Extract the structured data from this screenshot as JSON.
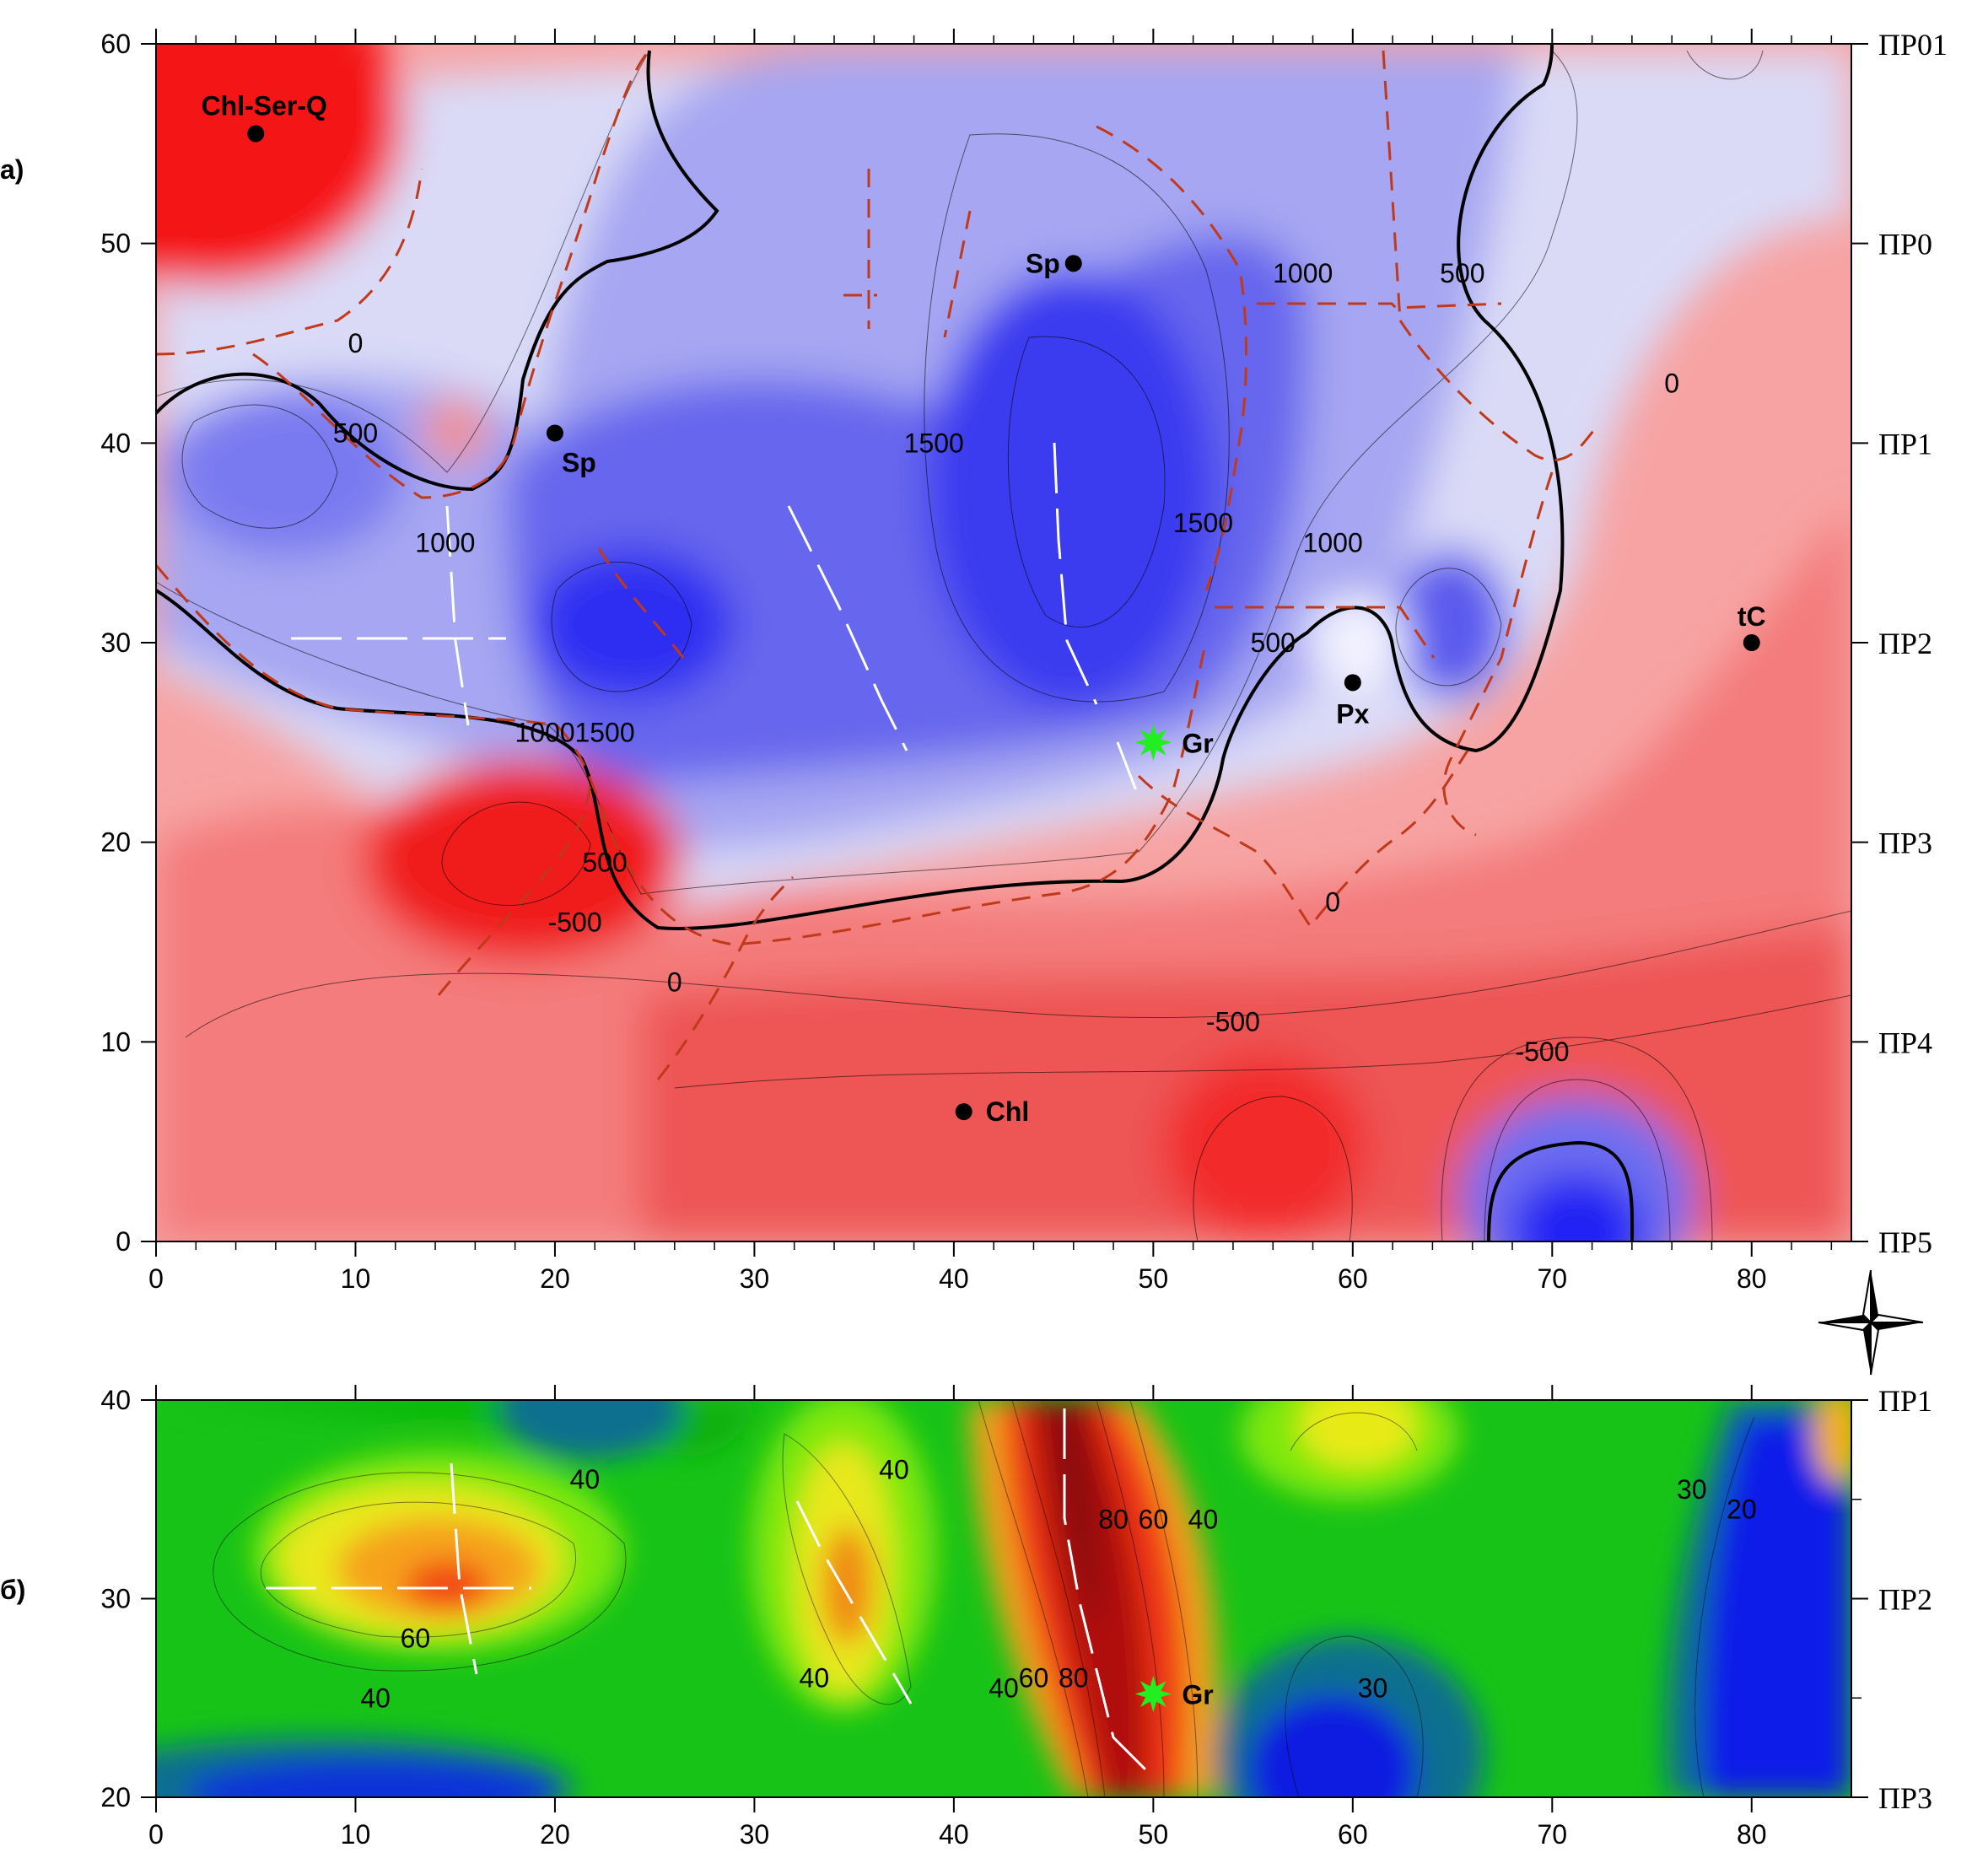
{
  "chart_data": [
    {
      "type": "heatmap",
      "panel_label": "a)",
      "xlim": [
        0,
        85
      ],
      "ylim": [
        0,
        60
      ],
      "x_ticks": [
        0,
        10,
        20,
        30,
        40,
        50,
        60,
        70,
        80
      ],
      "y_ticks": [
        0,
        10,
        20,
        30,
        40,
        50,
        60
      ],
      "right_labels": [
        {
          "y": 60,
          "label": "ПР01"
        },
        {
          "y": 50,
          "label": "ПР0"
        },
        {
          "y": 40,
          "label": "ПР1"
        },
        {
          "y": 30,
          "label": "ПР2"
        },
        {
          "y": 20,
          "label": "ПР3"
        },
        {
          "y": 10,
          "label": "ПР4"
        },
        {
          "y": 0,
          "label": "ПР5"
        }
      ],
      "colormap": "red-white-blue",
      "contour_labels": [
        {
          "x": 10,
          "y": 45,
          "text": "0"
        },
        {
          "x": 10,
          "y": 40.5,
          "text": "500"
        },
        {
          "x": 14.5,
          "y": 35,
          "text": "1000"
        },
        {
          "x": 39,
          "y": 40,
          "text": "1500"
        },
        {
          "x": 57.5,
          "y": 48.5,
          "text": "1000"
        },
        {
          "x": 65.5,
          "y": 48.5,
          "text": "500"
        },
        {
          "x": 76,
          "y": 43,
          "text": "0"
        },
        {
          "x": 52.5,
          "y": 36,
          "text": "1500"
        },
        {
          "x": 59,
          "y": 35,
          "text": "1000"
        },
        {
          "x": 56,
          "y": 30,
          "text": "500"
        },
        {
          "x": 19.5,
          "y": 25.5,
          "text": "1000"
        },
        {
          "x": 22.5,
          "y": 25.5,
          "text": "1500"
        },
        {
          "x": 22.5,
          "y": 19,
          "text": "500"
        },
        {
          "x": 21,
          "y": 16,
          "text": "-500"
        },
        {
          "x": 26,
          "y": 13,
          "text": "0"
        },
        {
          "x": 59,
          "y": 17,
          "text": "0"
        },
        {
          "x": 54,
          "y": 11,
          "text": "-500"
        },
        {
          "x": 69.5,
          "y": 9.5,
          "text": "-500"
        }
      ],
      "points": [
        {
          "x": 5,
          "y": 55.5,
          "label": "Chl-Ser-Q"
        },
        {
          "x": 20,
          "y": 40.5,
          "label": "Sp"
        },
        {
          "x": 46,
          "y": 49,
          "label": "Sp"
        },
        {
          "x": 60,
          "y": 28,
          "label": "Px"
        },
        {
          "x": 80,
          "y": 30,
          "label": "tC"
        },
        {
          "x": 40.5,
          "y": 6.5,
          "label": "Chl"
        }
      ],
      "star_point": {
        "x": 50,
        "y": 25,
        "label": "Gr",
        "color": "#22ee22"
      },
      "colors": {
        "fault_lines": "#c0391b",
        "zero_contour": "#000000"
      }
    },
    {
      "type": "heatmap",
      "panel_label": "б)",
      "xlim": [
        0,
        85
      ],
      "ylim": [
        20,
        40
      ],
      "x_ticks": [
        0,
        10,
        20,
        30,
        40,
        50,
        60,
        70,
        80
      ],
      "y_ticks": [
        20,
        30,
        40
      ],
      "right_labels": [
        {
          "y": 40,
          "label": "ПР1"
        },
        {
          "y": 30,
          "label": "ПР2"
        },
        {
          "y": 20,
          "label": "ПР3"
        }
      ],
      "colormap": "rainbow",
      "contour_labels": [
        {
          "x": 21.5,
          "y": 36,
          "text": "40"
        },
        {
          "x": 13,
          "y": 28,
          "text": "60"
        },
        {
          "x": 11,
          "y": 25,
          "text": "40"
        },
        {
          "x": 37,
          "y": 36.5,
          "text": "40"
        },
        {
          "x": 33,
          "y": 26,
          "text": "40"
        },
        {
          "x": 42.5,
          "y": 25.5,
          "text": "40"
        },
        {
          "x": 44,
          "y": 26,
          "text": "60"
        },
        {
          "x": 46,
          "y": 26,
          "text": "80"
        },
        {
          "x": 48,
          "y": 34,
          "text": "80"
        },
        {
          "x": 50,
          "y": 34,
          "text": "60"
        },
        {
          "x": 52.5,
          "y": 34,
          "text": "40"
        },
        {
          "x": 61,
          "y": 25.5,
          "text": "30"
        },
        {
          "x": 77,
          "y": 35.5,
          "text": "30"
        },
        {
          "x": 79.5,
          "y": 34.5,
          "text": "20"
        }
      ],
      "star_point": {
        "x": 50,
        "y": 25.2,
        "label": "Gr",
        "color": "#22ee22"
      }
    }
  ]
}
